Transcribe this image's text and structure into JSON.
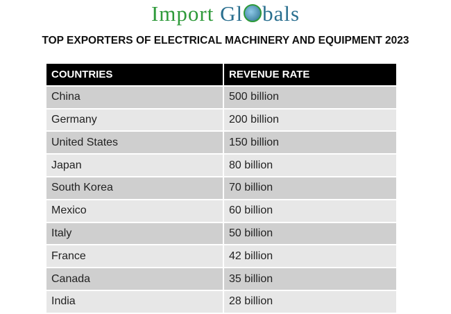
{
  "logo": {
    "part1": "Import",
    "part2a": "Gl",
    "part2b": "bals"
  },
  "title": "TOP EXPORTERS OF ELECTRICAL MACHINERY AND EQUIPMENT 2023",
  "table": {
    "headers": [
      "COUNTRIES",
      "REVENUE RATE"
    ],
    "rows": [
      [
        "China",
        "500 billion"
      ],
      [
        "Germany",
        "200 billion"
      ],
      [
        "United States",
        "150 billion"
      ],
      [
        "Japan",
        "80 billion"
      ],
      [
        "South Korea",
        "70 billion"
      ],
      [
        "Mexico",
        "60 billion"
      ],
      [
        "Italy",
        "50 billion"
      ],
      [
        "France",
        "42 billion"
      ],
      [
        "Canada",
        "35 billion"
      ],
      [
        "India",
        "28 billion"
      ]
    ]
  }
}
